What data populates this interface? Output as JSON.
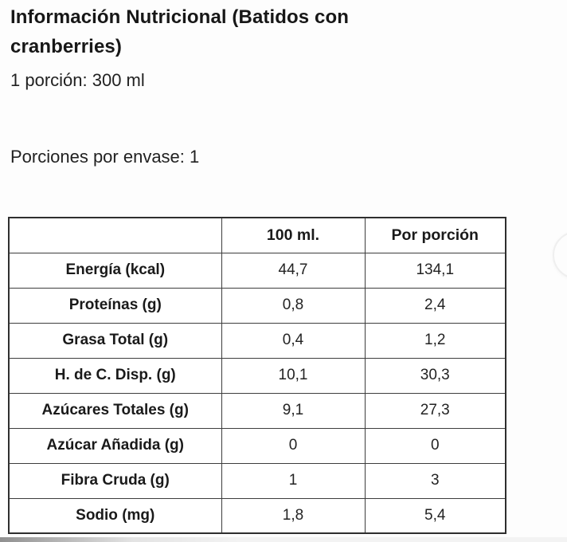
{
  "header": {
    "title": "Información Nutricional (Batidos con cranberries)",
    "serving_size": "1 porción: 300 ml",
    "servings_per_container": "Porciones por envase: 1"
  },
  "table": {
    "headers": [
      "",
      "100 ml.",
      "Por porción"
    ],
    "rows": [
      {
        "label": "Energía (kcal)",
        "per_100ml": "44,7",
        "per_portion": "134,1"
      },
      {
        "label": "Proteínas (g)",
        "per_100ml": "0,8",
        "per_portion": "2,4"
      },
      {
        "label": "Grasa Total (g)",
        "per_100ml": "0,4",
        "per_portion": "1,2"
      },
      {
        "label": "H. de C. Disp. (g)",
        "per_100ml": "10,1",
        "per_portion": "30,3"
      },
      {
        "label": "Azúcares Totales (g)",
        "per_100ml": "9,1",
        "per_portion": "27,3"
      },
      {
        "label": "Azúcar Añadida (g)",
        "per_100ml": "0",
        "per_portion": "0"
      },
      {
        "label": "Fibra Cruda (g)",
        "per_100ml": "1",
        "per_portion": "3"
      },
      {
        "label": "Sodio (mg)",
        "per_100ml": "1,8",
        "per_portion": "5,4"
      }
    ]
  },
  "colors": {
    "text": "#1c1c1c",
    "table_border": "#3d3d3d",
    "background": "#fdfdfd"
  }
}
